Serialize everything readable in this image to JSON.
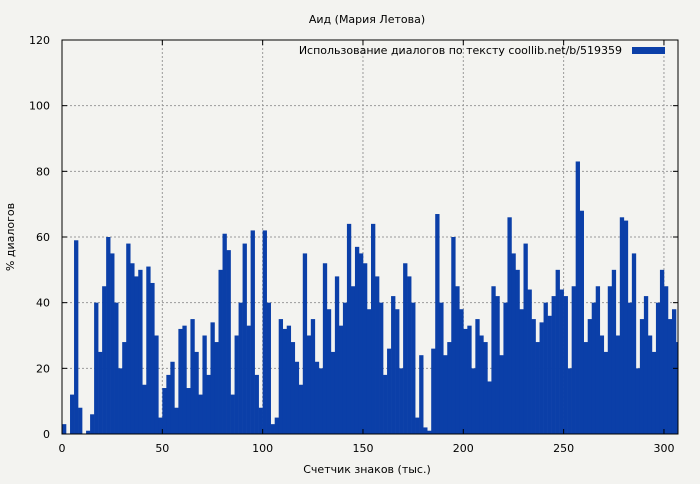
{
  "chart_data": {
    "type": "bar",
    "title": "Аид (Мария Летова)",
    "xlabel": "Счетчик знаков (тыс.)",
    "ylabel": "% диалогов",
    "xlim": [
      0,
      307
    ],
    "ylim": [
      0,
      120
    ],
    "x_ticks": [
      0,
      50,
      100,
      150,
      200,
      250,
      300
    ],
    "y_ticks": [
      0,
      20,
      40,
      60,
      80,
      100,
      120
    ],
    "grid": true,
    "legend_position": "top-right",
    "colors": {
      "bar": "#0b3fa8",
      "grid": "#9a9a9a",
      "background": "#f3f3f0"
    },
    "series": [
      {
        "name": "Использование диалогов по тексту  coollib.net/b/519359",
        "x": [
          0,
          2,
          4,
          6,
          8,
          10,
          12,
          14,
          16,
          18,
          20,
          22,
          24,
          26,
          28,
          30,
          32,
          34,
          36,
          38,
          40,
          42,
          44,
          46,
          48,
          50,
          52,
          54,
          56,
          58,
          60,
          62,
          64,
          66,
          68,
          70,
          72,
          74,
          76,
          78,
          80,
          82,
          84,
          86,
          88,
          90,
          92,
          94,
          96,
          98,
          100,
          102,
          104,
          106,
          108,
          110,
          112,
          114,
          116,
          118,
          120,
          122,
          124,
          126,
          128,
          130,
          132,
          134,
          136,
          138,
          140,
          142,
          144,
          146,
          148,
          150,
          152,
          154,
          156,
          158,
          160,
          162,
          164,
          166,
          168,
          170,
          172,
          174,
          176,
          178,
          180,
          182,
          184,
          186,
          188,
          190,
          192,
          194,
          196,
          198,
          200,
          202,
          204,
          206,
          208,
          210,
          212,
          214,
          216,
          218,
          220,
          222,
          224,
          226,
          228,
          230,
          232,
          234,
          236,
          238,
          240,
          242,
          244,
          246,
          248,
          250,
          252,
          254,
          256,
          258,
          260,
          262,
          264,
          266,
          268,
          270,
          272,
          274,
          276,
          278,
          280,
          282,
          284,
          286,
          288,
          290,
          292,
          294,
          296,
          298,
          300,
          302,
          304,
          306
        ],
        "values": [
          3,
          0,
          12,
          59,
          8,
          0,
          1,
          6,
          40,
          25,
          45,
          60,
          55,
          40,
          20,
          28,
          58,
          52,
          48,
          50,
          15,
          51,
          46,
          30,
          5,
          14,
          18,
          22,
          8,
          32,
          33,
          14,
          35,
          25,
          12,
          30,
          18,
          34,
          28,
          50,
          61,
          56,
          12,
          30,
          40,
          58,
          33,
          62,
          18,
          8,
          62,
          40,
          3,
          5,
          35,
          32,
          33,
          28,
          22,
          15,
          55,
          30,
          35,
          22,
          20,
          52,
          38,
          25,
          48,
          33,
          40,
          64,
          45,
          57,
          55,
          52,
          38,
          64,
          48,
          40,
          18,
          26,
          42,
          38,
          20,
          52,
          48,
          40,
          5,
          24,
          2,
          1,
          26,
          67,
          40,
          24,
          28,
          60,
          45,
          38,
          32,
          33,
          20,
          35,
          30,
          28,
          16,
          45,
          42,
          24,
          40,
          66,
          55,
          50,
          38,
          58,
          44,
          35,
          28,
          34,
          40,
          36,
          42,
          50,
          44,
          42,
          20,
          45,
          83,
          68,
          28,
          35,
          40,
          45,
          30,
          25,
          45,
          50,
          30,
          66,
          65,
          40,
          55,
          20,
          35,
          42,
          30,
          25,
          40,
          50,
          45,
          35,
          38,
          28
        ]
      }
    ]
  }
}
